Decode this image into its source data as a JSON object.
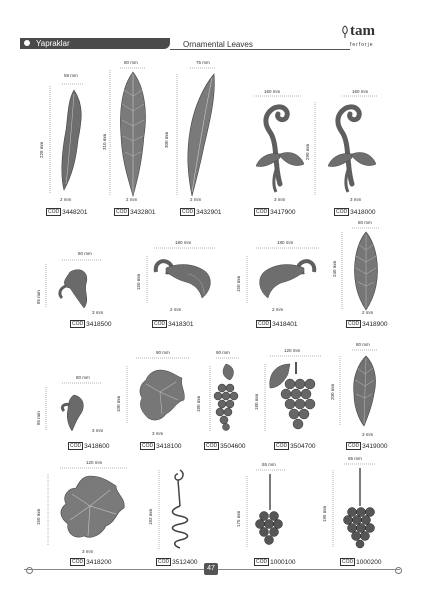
{
  "header": {
    "title_tr": "Yapraklar",
    "title_en": "Ornamental Leaves"
  },
  "logo": {
    "name": "tam",
    "subtitle": "ferforje"
  },
  "code_prefix": "COD",
  "items": [
    {
      "code": "3448201",
      "width": "58 mm",
      "height": "228 mm",
      "thickness": "2 mm"
    },
    {
      "code": "3432801",
      "width": "80 mm",
      "height": "310 mm",
      "thickness": "2 mm"
    },
    {
      "code": "3432901",
      "width": "75 mm",
      "height": "300 mm",
      "thickness": "2 mm"
    },
    {
      "code": "3417900",
      "width": "160 mm",
      "height": "",
      "thickness": "3 mm"
    },
    {
      "code": "3418000",
      "width": "160 mm",
      "height": "290 mm",
      "thickness": "3 mm"
    },
    {
      "code": "3418500",
      "width": "80 mm",
      "height": "85 mm",
      "thickness": "3 mm"
    },
    {
      "code": "3418301",
      "width": "180 mm",
      "height": "150 mm",
      "thickness": "2 mm"
    },
    {
      "code": "3418401",
      "width": "180 mm",
      "height": "150 mm",
      "thickness": "2 mm"
    },
    {
      "code": "3418900",
      "width": "80 mm",
      "height": "240 mm",
      "thickness": "2 mm"
    },
    {
      "code": "3418600",
      "width": "80 mm",
      "height": "85 mm",
      "thickness": "3 mm"
    },
    {
      "code": "3418100",
      "width": "90 mm",
      "height": "100 mm",
      "thickness": "3 mm"
    },
    {
      "code": "3504600",
      "width": "90 mm",
      "height": "180 mm",
      "thickness": ""
    },
    {
      "code": "3504700",
      "width": "120 mm",
      "height": "180 mm",
      "thickness": ""
    },
    {
      "code": "3419000",
      "width": "80 mm",
      "height": "200 mm",
      "thickness": "3 mm"
    },
    {
      "code": "3418200",
      "width": "120 mm",
      "height": "150 mm",
      "thickness": "3 mm"
    },
    {
      "code": "3512400",
      "width": "",
      "height": "183 mm",
      "thickness": ""
    },
    {
      "code": "1000100",
      "width": "55 mm",
      "height": "175 mm",
      "thickness": ""
    },
    {
      "code": "1000200",
      "width": "65 mm",
      "height": "195 mm",
      "thickness": ""
    }
  ],
  "page_number": "47"
}
